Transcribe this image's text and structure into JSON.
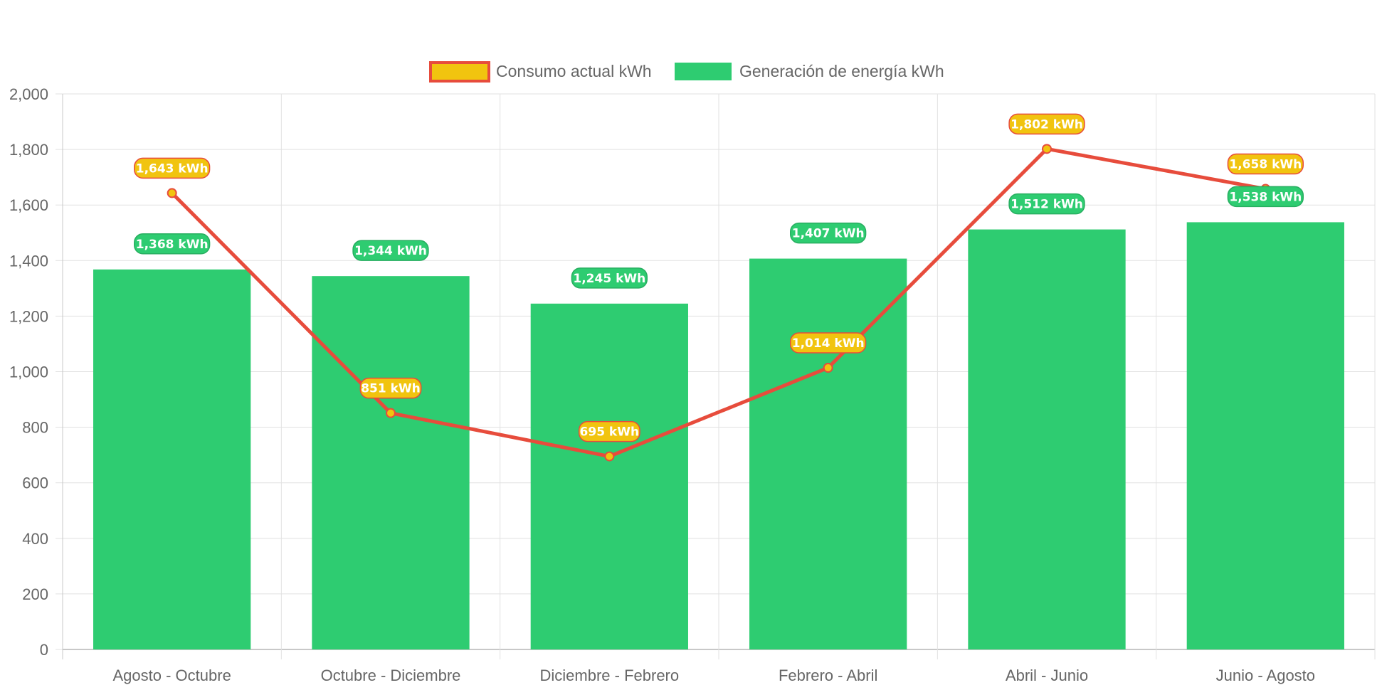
{
  "chart_data": {
    "type": "bar",
    "categories": [
      "Agosto - Octubre",
      "Octubre - Diciembre",
      "Diciembre - Febrero",
      "Febrero - Abril",
      "Abril - Junio",
      "Junio - Agosto"
    ],
    "series": [
      {
        "name": "Consumo actual kWh",
        "type": "line",
        "values": [
          1643,
          851,
          695,
          1014,
          1802,
          1658
        ],
        "labels": [
          "1,643 kWh",
          "851 kWh",
          "695 kWh",
          "1,014 kWh",
          "1,802 kWh",
          "1,658 kWh"
        ],
        "color": "#E74C3C",
        "fill": "#F1C40F"
      },
      {
        "name": "Generación de energía kWh",
        "type": "bar",
        "values": [
          1368,
          1344,
          1245,
          1407,
          1512,
          1538
        ],
        "labels": [
          "1,368 kWh",
          "1,344 kWh",
          "1,245 kWh",
          "1,407 kWh",
          "1,512 kWh",
          "1,538 kWh"
        ],
        "color": "#2ECC71",
        "label_border": "#27AE60"
      }
    ],
    "ylim": [
      0,
      2000
    ],
    "yticks": [
      0,
      200,
      400,
      600,
      800,
      1000,
      1200,
      1400,
      1600,
      1800,
      2000
    ],
    "ytick_labels": [
      "0",
      "200",
      "400",
      "600",
      "800",
      "1,000",
      "1,200",
      "1,400",
      "1,600",
      "1,800",
      "2,000"
    ],
    "grid": true,
    "legend_position": "top-center"
  }
}
